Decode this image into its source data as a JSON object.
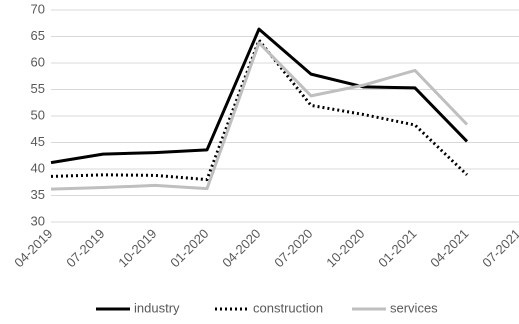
{
  "chart_data": {
    "type": "line",
    "categories": [
      "04-2019",
      "07-2019",
      "10-2019",
      "01-2020",
      "04-2020",
      "07-2020",
      "10-2020",
      "01-2021",
      "04-2021",
      "07-2021"
    ],
    "series": [
      {
        "name": "industry",
        "color": "#000000",
        "dash": "solid",
        "values": [
          41.2,
          42.8,
          43.1,
          43.6,
          66.4,
          57.9,
          55.5,
          55.3,
          45.2,
          null
        ]
      },
      {
        "name": "construction",
        "color": "#000000",
        "dash": "dotted",
        "values": [
          38.6,
          38.9,
          38.8,
          38.0,
          64.3,
          52.0,
          50.3,
          48.3,
          38.9,
          null
        ]
      },
      {
        "name": "services",
        "color": "#bfbfbf",
        "dash": "solid",
        "values": [
          36.2,
          36.5,
          36.9,
          36.3,
          63.8,
          53.8,
          55.8,
          58.6,
          48.4,
          null
        ]
      }
    ],
    "ylim": [
      30,
      70
    ],
    "yticks": [
      30,
      35,
      40,
      45,
      50,
      55,
      60,
      65,
      70
    ],
    "grid": true,
    "legend": "bottom"
  }
}
